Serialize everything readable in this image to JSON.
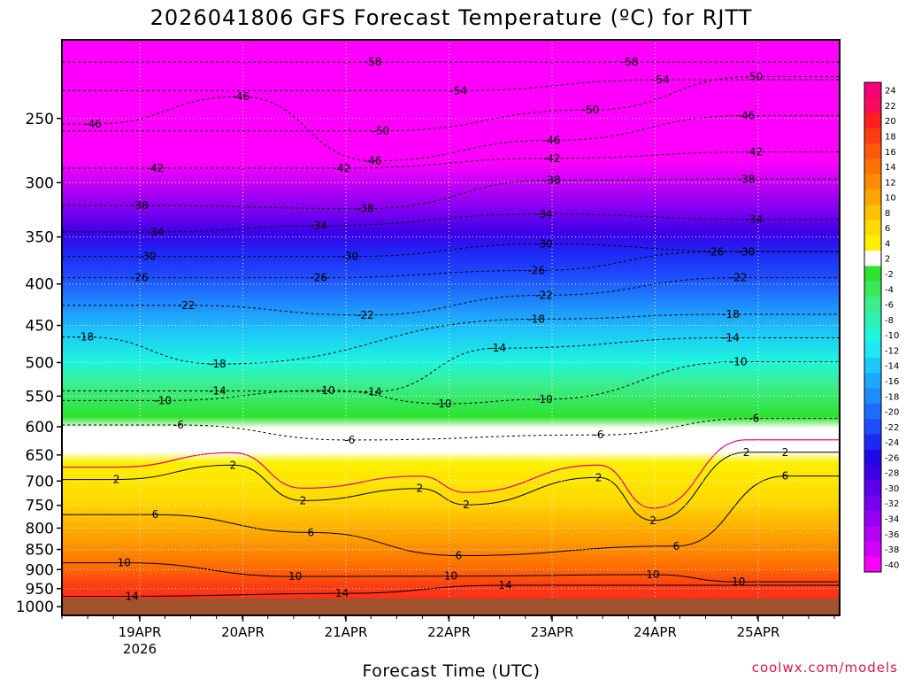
{
  "chart_data": {
    "type": "heatmap",
    "title": "2026041806 GFS Forecast Temperature (ºC) for RJTT",
    "xlabel": "Forecast Time (UTC)",
    "ylabel": "",
    "y_ticks": [
      "250",
      "300",
      "350",
      "400",
      "450",
      "500",
      "550",
      "600",
      "650",
      "700",
      "750",
      "800",
      "850",
      "900",
      "950",
      "1000"
    ],
    "x_ticks": [
      "19APR",
      "20APR",
      "21APR",
      "22APR",
      "23APR",
      "24APR",
      "25APR"
    ],
    "x_year": "2026",
    "y_range_hpa": [
      200,
      1025
    ],
    "grid": true,
    "colorbar": {
      "levels": [
        "24",
        "22",
        "20",
        "18",
        "16",
        "14",
        "12",
        "10",
        "8",
        "6",
        "4",
        "2",
        "-2",
        "-4",
        "-6",
        "-8",
        "-10",
        "-12",
        "-14",
        "-16",
        "-18",
        "-20",
        "-22",
        "-24",
        "-26",
        "-28",
        "-30",
        "-32",
        "-34",
        "-36",
        "-38",
        "-40"
      ],
      "colors": [
        "#f5007a",
        "#fa0a5a",
        "#fe1e1e",
        "#fe3c14",
        "#fe5a0a",
        "#fe7300",
        "#fe8c00",
        "#fea500",
        "#fec000",
        "#feda00",
        "#fef000",
        "#ffffff",
        "#2ee22e",
        "#3ce85a",
        "#3ced8c",
        "#2ef2b4",
        "#1ef5dc",
        "#1ee8f5",
        "#1ec8f8",
        "#1ea8fa",
        "#1e8cfc",
        "#1e6cfe",
        "#1e4cfe",
        "#1e28f5",
        "#1e0ae6",
        "#3c00e6",
        "#5a00eb",
        "#7800f0",
        "#9600f2",
        "#b400f5",
        "#d200fa",
        "#ff00ff"
      ]
    },
    "contour_labels": [
      {
        "t": "-58",
        "x": 0.4,
        "p": 213
      },
      {
        "t": "-58",
        "x": 0.73,
        "p": 213
      },
      {
        "t": "-54",
        "x": 0.51,
        "p": 231
      },
      {
        "t": "-54",
        "x": 0.77,
        "p": 224
      },
      {
        "t": "-50",
        "x": 0.89,
        "p": 222
      },
      {
        "t": "-50",
        "x": 0.41,
        "p": 259
      },
      {
        "t": "-50",
        "x": 0.68,
        "p": 244
      },
      {
        "t": "-46",
        "x": 0.04,
        "p": 254
      },
      {
        "t": "-46",
        "x": 0.23,
        "p": 235
      },
      {
        "t": "-46",
        "x": 0.4,
        "p": 282
      },
      {
        "t": "-46",
        "x": 0.63,
        "p": 266
      },
      {
        "t": "-46",
        "x": 0.88,
        "p": 248
      },
      {
        "t": "-42",
        "x": 0.12,
        "p": 288
      },
      {
        "t": "-42",
        "x": 0.36,
        "p": 288
      },
      {
        "t": "-42",
        "x": 0.63,
        "p": 280
      },
      {
        "t": "-42",
        "x": 0.89,
        "p": 275
      },
      {
        "t": "-38",
        "x": 0.1,
        "p": 320
      },
      {
        "t": "-38",
        "x": 0.39,
        "p": 323
      },
      {
        "t": "-38",
        "x": 0.63,
        "p": 298
      },
      {
        "t": "-38",
        "x": 0.88,
        "p": 297
      },
      {
        "t": "-34",
        "x": 0.12,
        "p": 345
      },
      {
        "t": "-34",
        "x": 0.33,
        "p": 339
      },
      {
        "t": "-34",
        "x": 0.62,
        "p": 328
      },
      {
        "t": "-34",
        "x": 0.89,
        "p": 333
      },
      {
        "t": "-30",
        "x": 0.11,
        "p": 370
      },
      {
        "t": "-30",
        "x": 0.37,
        "p": 370
      },
      {
        "t": "-30",
        "x": 0.62,
        "p": 357
      },
      {
        "t": "-30",
        "x": 0.88,
        "p": 365
      },
      {
        "t": "-26",
        "x": 0.1,
        "p": 393
      },
      {
        "t": "-26",
        "x": 0.33,
        "p": 393
      },
      {
        "t": "-26",
        "x": 0.61,
        "p": 385
      },
      {
        "t": "-26",
        "x": 0.84,
        "p": 365
      },
      {
        "t": "-22",
        "x": 0.16,
        "p": 425
      },
      {
        "t": "-22",
        "x": 0.39,
        "p": 437
      },
      {
        "t": "-22",
        "x": 0.62,
        "p": 413
      },
      {
        "t": "-22",
        "x": 0.87,
        "p": 393
      },
      {
        "t": "-18",
        "x": 0.03,
        "p": 465
      },
      {
        "t": "-18",
        "x": 0.2,
        "p": 502
      },
      {
        "t": "-18",
        "x": 0.61,
        "p": 442
      },
      {
        "t": "-18",
        "x": 0.86,
        "p": 436
      },
      {
        "t": "-14",
        "x": 0.2,
        "p": 542
      },
      {
        "t": "-14",
        "x": 0.4,
        "p": 543
      },
      {
        "t": "-14",
        "x": 0.56,
        "p": 480
      },
      {
        "t": "-14",
        "x": 0.86,
        "p": 466
      },
      {
        "t": "-10",
        "x": 0.13,
        "p": 557
      },
      {
        "t": "-10",
        "x": 0.34,
        "p": 541
      },
      {
        "t": "-10",
        "x": 0.49,
        "p": 562
      },
      {
        "t": "-10",
        "x": 0.62,
        "p": 555
      },
      {
        "t": "-10",
        "x": 0.87,
        "p": 499
      },
      {
        "t": "-6",
        "x": 0.15,
        "p": 597
      },
      {
        "t": "-6",
        "x": 0.37,
        "p": 623
      },
      {
        "t": "-6",
        "x": 0.69,
        "p": 614
      },
      {
        "t": "-6",
        "x": 0.89,
        "p": 586
      },
      {
        "t": "2",
        "x": 0.07,
        "p": 697
      },
      {
        "t": "2",
        "x": 0.22,
        "p": 669
      },
      {
        "t": "2",
        "x": 0.31,
        "p": 740
      },
      {
        "t": "2",
        "x": 0.46,
        "p": 715
      },
      {
        "t": "2",
        "x": 0.52,
        "p": 749
      },
      {
        "t": "2",
        "x": 0.69,
        "p": 693
      },
      {
        "t": "2",
        "x": 0.76,
        "p": 783
      },
      {
        "t": "2",
        "x": 0.88,
        "p": 645
      },
      {
        "t": "2",
        "x": 0.93,
        "p": 645
      },
      {
        "t": "6",
        "x": 0.12,
        "p": 770
      },
      {
        "t": "6",
        "x": 0.32,
        "p": 810
      },
      {
        "t": "6",
        "x": 0.51,
        "p": 865
      },
      {
        "t": "6",
        "x": 0.79,
        "p": 842
      },
      {
        "t": "6",
        "x": 0.93,
        "p": 690
      },
      {
        "t": "10",
        "x": 0.08,
        "p": 883
      },
      {
        "t": "10",
        "x": 0.3,
        "p": 918
      },
      {
        "t": "10",
        "x": 0.5,
        "p": 917
      },
      {
        "t": "10",
        "x": 0.76,
        "p": 913
      },
      {
        "t": "10",
        "x": 0.87,
        "p": 932
      },
      {
        "t": "14",
        "x": 0.09,
        "p": 971
      },
      {
        "t": "14",
        "x": 0.36,
        "p": 963
      },
      {
        "t": "14",
        "x": 0.57,
        "p": 941
      }
    ],
    "credit": "coolwx.com/models"
  }
}
